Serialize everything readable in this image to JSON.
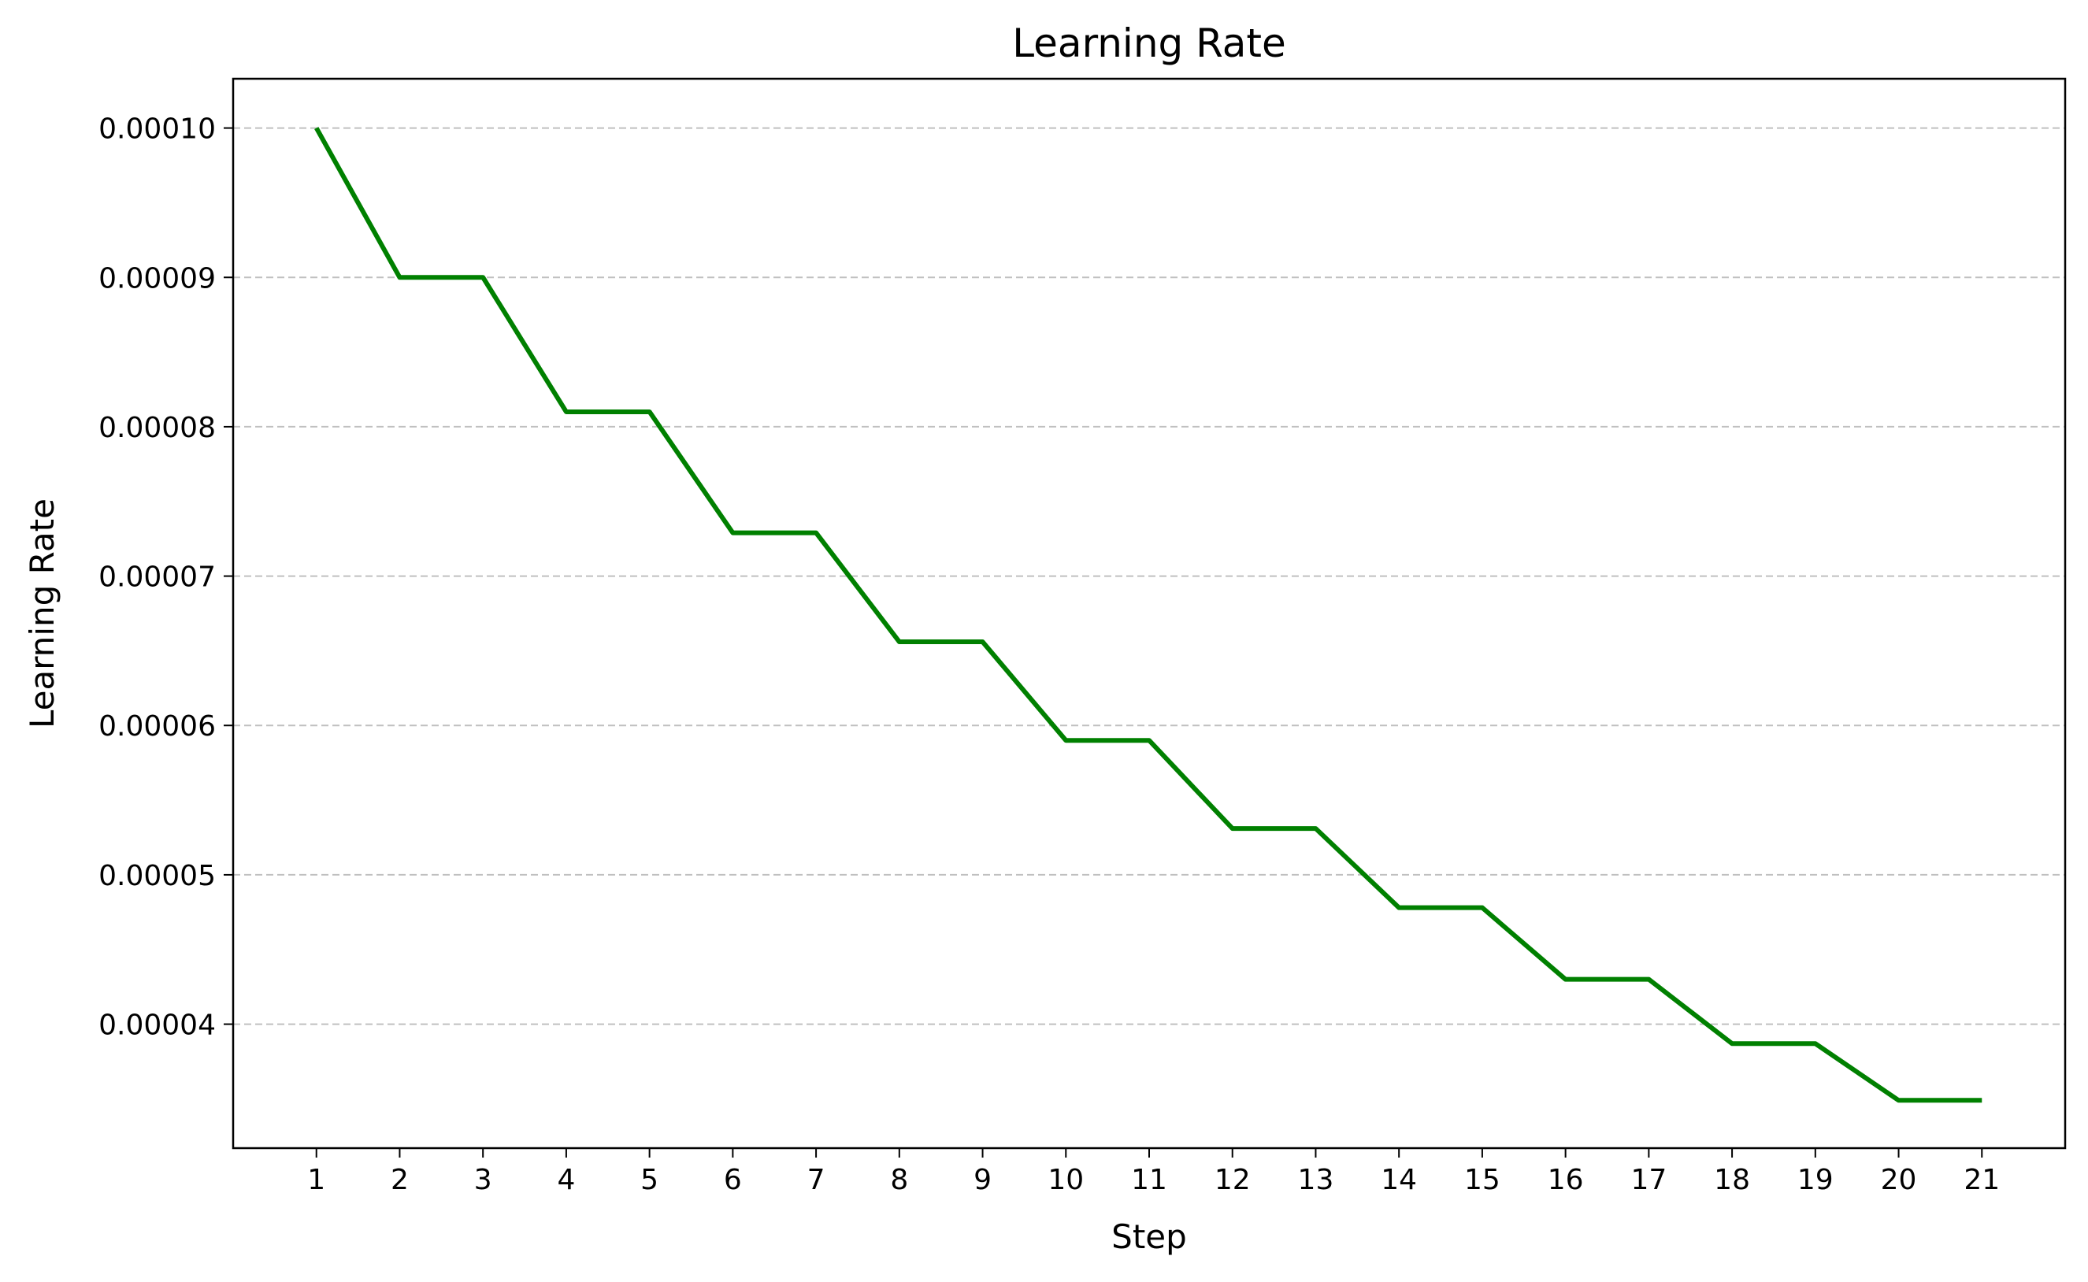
{
  "chart_data": {
    "type": "line",
    "title": "Learning Rate",
    "xlabel": "Step",
    "ylabel": "Learning Rate",
    "x": [
      1,
      2,
      3,
      4,
      5,
      6,
      7,
      8,
      9,
      10,
      11,
      12,
      13,
      14,
      15,
      16,
      17,
      18,
      19,
      20,
      21
    ],
    "series": [
      {
        "color": "#008000",
        "values": [
          0.0001,
          9e-05,
          9e-05,
          8.1e-05,
          8.1e-05,
          7.29e-05,
          7.29e-05,
          6.56e-05,
          6.56e-05,
          5.9e-05,
          5.9e-05,
          5.31e-05,
          5.31e-05,
          4.78e-05,
          4.78e-05,
          4.3e-05,
          4.3e-05,
          3.87e-05,
          3.87e-05,
          3.49e-05,
          3.49e-05
        ]
      }
    ],
    "xticks": [
      1,
      2,
      3,
      4,
      5,
      6,
      7,
      8,
      9,
      10,
      11,
      12,
      13,
      14,
      15,
      16,
      17,
      18,
      19,
      20,
      21
    ],
    "xtick_labels": [
      "1",
      "2",
      "3",
      "4",
      "5",
      "6",
      "7",
      "8",
      "9",
      "10",
      "11",
      "12",
      "13",
      "14",
      "15",
      "16",
      "17",
      "18",
      "19",
      "20",
      "21"
    ],
    "yticks": [
      4e-05,
      5e-05,
      6e-05,
      7e-05,
      8e-05,
      9e-05,
      0.0001
    ],
    "ytick_labels": [
      "0.00004",
      "0.00005",
      "0.00006",
      "0.00007",
      "0.00008",
      "0.00009",
      "0.00010"
    ],
    "xlim": [
      0,
      22
    ],
    "ylim": [
      3.17e-05,
      0.0001033
    ],
    "grid": {
      "axis": "y",
      "style": "dashed",
      "color": "#c0c0c0"
    },
    "legend": "none"
  }
}
